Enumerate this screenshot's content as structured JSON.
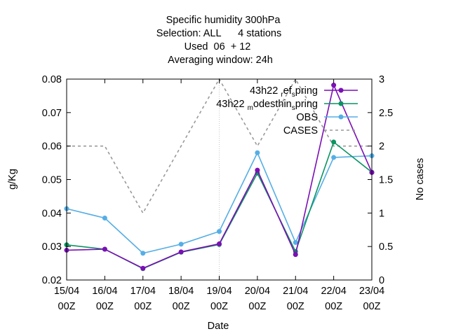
{
  "chart_data": {
    "type": "line",
    "title_lines": [
      "Specific humidity 300hPa",
      "Selection: ALL      4 stations",
      "Used  06  + 12",
      "Averaging window: 24h"
    ],
    "xlabel": "Date",
    "ylabel": "g/Kg",
    "y2label": "No cases",
    "categories": [
      [
        "15/04",
        "00Z"
      ],
      [
        "16/04",
        "00Z"
      ],
      [
        "17/04",
        "00Z"
      ],
      [
        "18/04",
        "00Z"
      ],
      [
        "19/04",
        "00Z"
      ],
      [
        "20/04",
        "00Z"
      ],
      [
        "21/04",
        "00Z"
      ],
      [
        "22/04",
        "00Z"
      ],
      [
        "23/04",
        "00Z"
      ]
    ],
    "ylim": [
      0.02,
      0.08
    ],
    "yticks": [
      "0.02",
      "0.03",
      "0.04",
      "0.05",
      "0.06",
      "0.07",
      "0.08"
    ],
    "y2lim": [
      0,
      3
    ],
    "y2ticks": [
      "0",
      "0.5",
      "1",
      "1.5",
      "2",
      "2.5",
      "3"
    ],
    "grid": "vertical line at 19/04",
    "legend_position": "top-right",
    "series": [
      {
        "name_main": "43h22",
        "name_sub": "r",
        "name_rest": "ef",
        "name_sub2": "s",
        "name_tail": "pring",
        "color": "#7b0fb5",
        "axis": "left",
        "style": "solid",
        "marker": "circle",
        "values": [
          0.0289,
          0.0292,
          0.0235,
          0.0284,
          0.0308,
          0.0528,
          0.0276,
          0.0782,
          0.0521
        ]
      },
      {
        "name_main": "43h22",
        "name_sub": "m",
        "name_rest": "odesthin",
        "name_sub2": "s",
        "name_tail": "pring",
        "color": "#0a9462",
        "axis": "left",
        "style": "solid",
        "marker": "circle",
        "values": [
          0.0305,
          0.0292,
          0.0234,
          0.0283,
          0.0306,
          0.0519,
          0.0285,
          0.0612,
          0.0522
        ]
      },
      {
        "name": "OBS",
        "color": "#55aee5",
        "axis": "left",
        "style": "solid",
        "marker": "circle",
        "values": [
          0.0413,
          0.0385,
          0.028,
          0.0307,
          0.0345,
          0.058,
          0.0312,
          0.0566,
          0.0571
        ]
      },
      {
        "name": "CASES",
        "color": "#999999",
        "axis": "right",
        "style": "dashed",
        "marker": "none",
        "values": [
          2,
          2,
          1,
          2,
          3,
          2,
          3,
          2,
          2
        ]
      }
    ]
  }
}
